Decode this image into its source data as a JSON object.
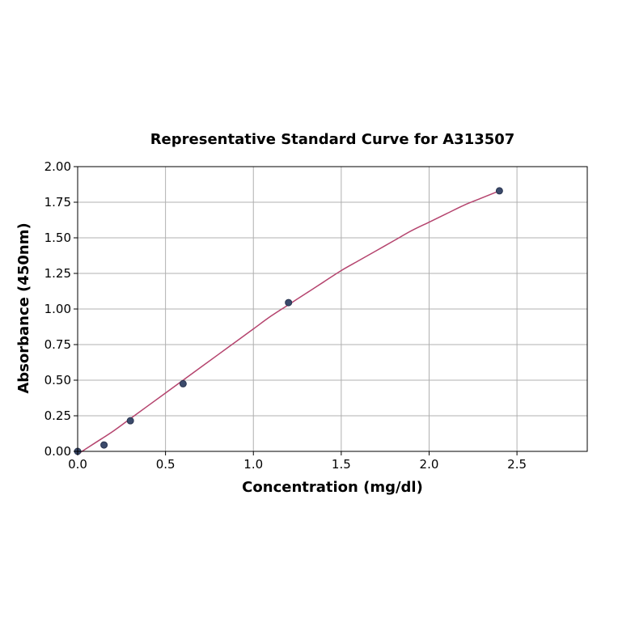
{
  "chart_data": {
    "type": "scatter",
    "title": "Representative Standard Curve for A313507",
    "xlabel": "Concentration (mg/dl)",
    "ylabel": "Absorbance (450nm)",
    "xlim": [
      0,
      2.9
    ],
    "ylim": [
      0,
      2.0
    ],
    "xticks": [
      0.0,
      0.5,
      1.0,
      1.5,
      2.0,
      2.5
    ],
    "xtick_labels": [
      "0.0",
      "0.5",
      "1.0",
      "1.5",
      "2.0",
      "2.5"
    ],
    "yticks": [
      0.0,
      0.25,
      0.5,
      0.75,
      1.0,
      1.25,
      1.5,
      1.75,
      2.0
    ],
    "ytick_labels": [
      "0.00",
      "0.25",
      "0.50",
      "0.75",
      "1.00",
      "1.25",
      "1.50",
      "1.75",
      "2.00"
    ],
    "grid": true,
    "series": [
      {
        "points": [
          {
            "x": 0.0,
            "y": 0.0
          },
          {
            "x": 0.15,
            "y": 0.045
          },
          {
            "x": 0.3,
            "y": 0.215
          },
          {
            "x": 0.6,
            "y": 0.475
          },
          {
            "x": 1.2,
            "y": 1.045
          },
          {
            "x": 2.4,
            "y": 1.83
          }
        ],
        "color": "#3b4a6b"
      }
    ],
    "fit_curve": {
      "x": [
        0.0,
        0.1,
        0.2,
        0.3,
        0.4,
        0.5,
        0.6,
        0.7,
        0.8,
        0.9,
        1.0,
        1.1,
        1.2,
        1.3,
        1.4,
        1.5,
        1.6,
        1.7,
        1.8,
        1.9,
        2.0,
        2.1,
        2.2,
        2.3,
        2.4
      ],
      "y": [
        -0.02,
        0.06,
        0.14,
        0.23,
        0.32,
        0.41,
        0.5,
        0.59,
        0.68,
        0.77,
        0.86,
        0.95,
        1.03,
        1.11,
        1.19,
        1.27,
        1.34,
        1.41,
        1.48,
        1.55,
        1.61,
        1.67,
        1.73,
        1.78,
        1.83
      ],
      "color": "#b5446e"
    }
  }
}
